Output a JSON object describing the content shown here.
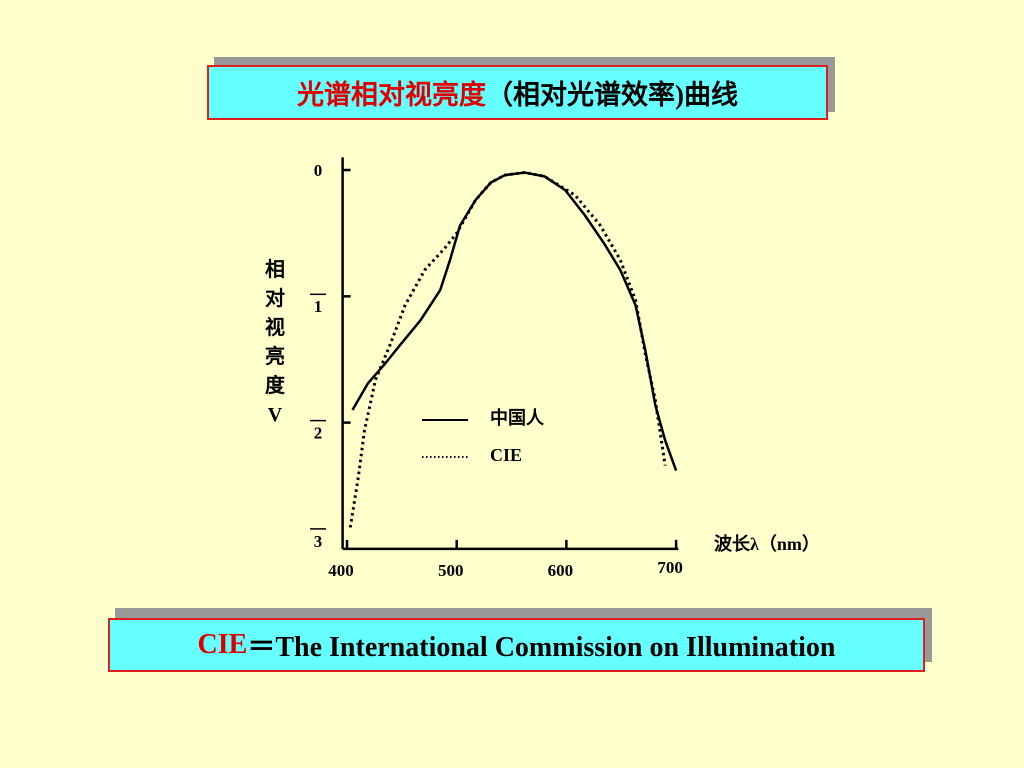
{
  "chart_data": {
    "type": "line",
    "title": [
      "光谱相对视亮度",
      "（相对光谱效率)曲线"
    ],
    "y_label": "相对视亮度V",
    "x_label": "波长λ（nm）",
    "xlim": [
      396,
      702
    ],
    "xticks": [
      400,
      500,
      600,
      700
    ],
    "ylim": [
      -3,
      0.1
    ],
    "yticks": [
      0,
      {
        "value": -1,
        "label": "1"
      },
      {
        "value": -2,
        "label": "2"
      },
      {
        "value": -3,
        "label": "3"
      }
    ],
    "series": [
      {
        "name": "中国人",
        "color": "#000000",
        "style": "solid",
        "x": [
          405,
          419,
          435,
          448,
          467,
          485,
          494,
          503,
          517,
          531,
          544,
          562,
          580,
          599,
          617,
          635,
          649,
          663,
          672,
          681,
          690,
          700
        ],
        "values": [
          -1.9,
          -1.69,
          -1.53,
          -1.39,
          -1.19,
          -0.95,
          -0.71,
          -0.44,
          -0.24,
          -0.1,
          -0.04,
          -0.02,
          -0.05,
          -0.16,
          -0.36,
          -0.59,
          -0.79,
          -1.07,
          -1.43,
          -1.86,
          -2.14,
          -2.38
        ]
      },
      {
        "name": "CIE",
        "color": "#000000",
        "style": "dotted",
        "x": [
          403,
          410,
          416,
          426,
          439,
          453,
          471,
          489,
          500,
          517,
          531,
          544,
          562,
          580,
          608,
          631,
          649,
          663,
          672,
          681,
          690
        ],
        "values": [
          -2.83,
          -2.45,
          -2.06,
          -1.66,
          -1.39,
          -1.07,
          -0.79,
          -0.62,
          -0.5,
          -0.24,
          -0.1,
          -0.04,
          -0.02,
          -0.05,
          -0.2,
          -0.44,
          -0.71,
          -1.03,
          -1.46,
          -1.82,
          -2.34
        ]
      }
    ]
  },
  "footnote": {
    "term": "CIE",
    "definition": "＝The International Commission on Illumination"
  }
}
